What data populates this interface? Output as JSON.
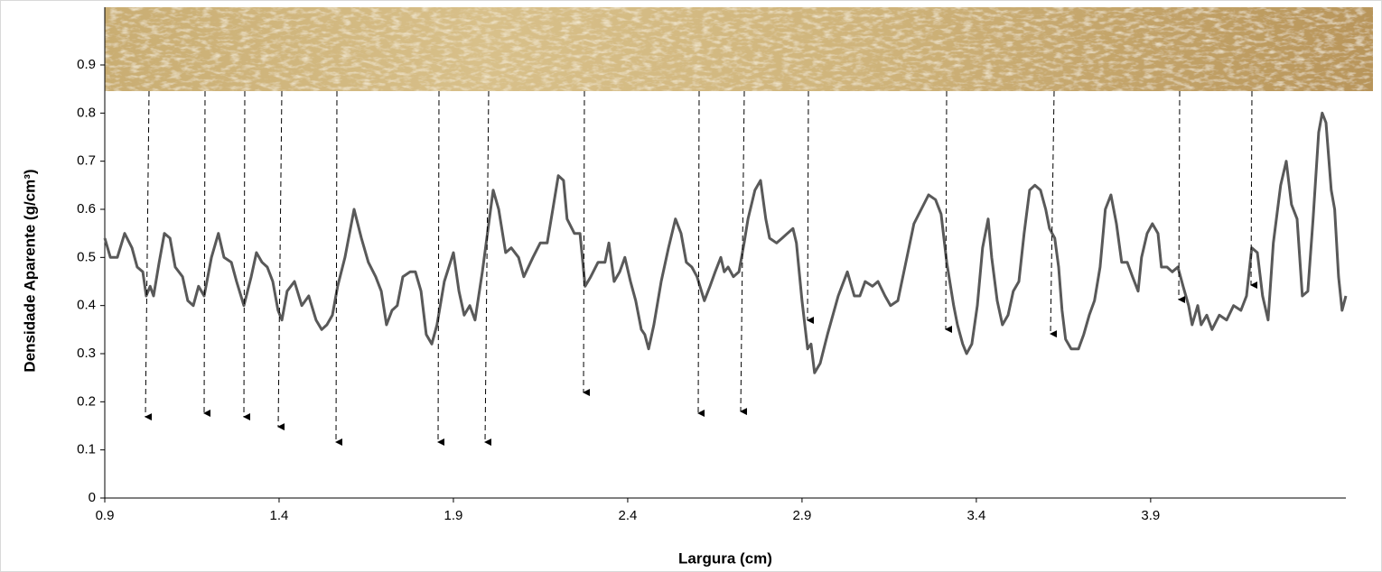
{
  "chart_data": {
    "type": "line",
    "x_label": "Largura (cm)",
    "y_label": "Densidade Aparente (g/cm³)",
    "color": "#595959",
    "xlim": [
      0.9,
      4.46
    ],
    "ylim": [
      0,
      1.02
    ],
    "xticks": [
      0.9,
      1.4,
      1.9,
      2.4,
      2.9,
      3.4,
      3.9
    ],
    "yticks": [
      0,
      0.1,
      0.2,
      0.3,
      0.4,
      0.5,
      0.6,
      0.7,
      0.8,
      0.9
    ],
    "x": [
      0.9,
      0.916,
      0.936,
      0.957,
      0.978,
      0.993,
      1.009,
      1.019,
      1.03,
      1.04,
      1.056,
      1.071,
      1.087,
      1.102,
      1.123,
      1.138,
      1.154,
      1.169,
      1.185,
      1.206,
      1.226,
      1.242,
      1.263,
      1.278,
      1.299,
      1.32,
      1.335,
      1.351,
      1.366,
      1.382,
      1.397,
      1.408,
      1.423,
      1.444,
      1.465,
      1.485,
      1.506,
      1.522,
      1.537,
      1.553,
      1.568,
      1.589,
      1.615,
      1.636,
      1.656,
      1.677,
      1.693,
      1.708,
      1.724,
      1.739,
      1.755,
      1.776,
      1.791,
      1.807,
      1.822,
      1.838,
      1.853,
      1.874,
      1.9,
      1.916,
      1.931,
      1.947,
      1.962,
      1.983,
      2.014,
      2.03,
      2.05,
      2.066,
      2.087,
      2.102,
      2.128,
      2.149,
      2.169,
      2.185,
      2.201,
      2.216,
      2.226,
      2.247,
      2.263,
      2.278,
      2.294,
      2.315,
      2.335,
      2.346,
      2.361,
      2.377,
      2.392,
      2.408,
      2.423,
      2.439,
      2.449,
      2.46,
      2.475,
      2.496,
      2.517,
      2.537,
      2.553,
      2.568,
      2.584,
      2.599,
      2.62,
      2.636,
      2.651,
      2.667,
      2.677,
      2.688,
      2.703,
      2.719,
      2.734,
      2.745,
      2.765,
      2.781,
      2.796,
      2.807,
      2.827,
      2.843,
      2.858,
      2.874,
      2.884,
      2.9,
      2.916,
      2.926,
      2.936,
      2.952,
      2.973,
      3.004,
      3.03,
      3.05,
      3.066,
      3.081,
      3.102,
      3.118,
      3.138,
      3.154,
      3.175,
      3.195,
      3.221,
      3.242,
      3.263,
      3.283,
      3.299,
      3.315,
      3.335,
      3.346,
      3.361,
      3.372,
      3.387,
      3.403,
      3.418,
      3.434,
      3.444,
      3.46,
      3.475,
      3.491,
      3.506,
      3.522,
      3.537,
      3.553,
      3.568,
      3.584,
      3.599,
      3.61,
      3.625,
      3.636,
      3.646,
      3.656,
      3.672,
      3.693,
      3.708,
      3.724,
      3.739,
      3.755,
      3.77,
      3.786,
      3.802,
      3.817,
      3.833,
      3.848,
      3.864,
      3.874,
      3.89,
      3.905,
      3.921,
      3.931,
      3.947,
      3.962,
      3.978,
      3.993,
      4.009,
      4.019,
      4.035,
      4.045,
      4.061,
      4.076,
      4.097,
      4.118,
      4.138,
      4.159,
      4.175,
      4.19,
      4.206,
      4.221,
      4.237,
      4.252,
      4.273,
      4.289,
      4.304,
      4.32,
      4.335,
      4.351,
      4.366,
      4.382,
      4.392,
      4.403,
      4.418,
      4.428,
      4.439,
      4.449,
      4.46
    ],
    "values": [
      0.54,
      0.5,
      0.5,
      0.55,
      0.52,
      0.48,
      0.47,
      0.42,
      0.44,
      0.42,
      0.49,
      0.55,
      0.54,
      0.48,
      0.46,
      0.41,
      0.4,
      0.44,
      0.42,
      0.5,
      0.55,
      0.5,
      0.49,
      0.45,
      0.4,
      0.46,
      0.51,
      0.49,
      0.48,
      0.45,
      0.39,
      0.37,
      0.43,
      0.45,
      0.4,
      0.42,
      0.37,
      0.35,
      0.36,
      0.38,
      0.44,
      0.5,
      0.6,
      0.54,
      0.49,
      0.46,
      0.43,
      0.36,
      0.39,
      0.4,
      0.46,
      0.47,
      0.47,
      0.43,
      0.34,
      0.32,
      0.36,
      0.45,
      0.51,
      0.43,
      0.38,
      0.4,
      0.37,
      0.47,
      0.64,
      0.6,
      0.51,
      0.52,
      0.5,
      0.46,
      0.5,
      0.53,
      0.53,
      0.6,
      0.67,
      0.66,
      0.58,
      0.55,
      0.55,
      0.44,
      0.46,
      0.49,
      0.49,
      0.53,
      0.45,
      0.47,
      0.5,
      0.45,
      0.41,
      0.35,
      0.34,
      0.31,
      0.36,
      0.45,
      0.52,
      0.58,
      0.55,
      0.49,
      0.48,
      0.46,
      0.41,
      0.44,
      0.47,
      0.5,
      0.47,
      0.48,
      0.46,
      0.47,
      0.53,
      0.58,
      0.64,
      0.66,
      0.58,
      0.54,
      0.53,
      0.54,
      0.55,
      0.56,
      0.53,
      0.41,
      0.31,
      0.32,
      0.26,
      0.28,
      0.34,
      0.42,
      0.47,
      0.42,
      0.42,
      0.45,
      0.44,
      0.45,
      0.42,
      0.4,
      0.41,
      0.48,
      0.57,
      0.6,
      0.63,
      0.62,
      0.59,
      0.49,
      0.4,
      0.36,
      0.32,
      0.3,
      0.32,
      0.4,
      0.52,
      0.58,
      0.5,
      0.41,
      0.36,
      0.38,
      0.43,
      0.45,
      0.55,
      0.64,
      0.65,
      0.64,
      0.6,
      0.56,
      0.54,
      0.48,
      0.39,
      0.33,
      0.31,
      0.31,
      0.34,
      0.38,
      0.41,
      0.48,
      0.6,
      0.63,
      0.57,
      0.49,
      0.49,
      0.46,
      0.43,
      0.5,
      0.55,
      0.57,
      0.55,
      0.48,
      0.48,
      0.47,
      0.48,
      0.44,
      0.4,
      0.36,
      0.4,
      0.36,
      0.38,
      0.35,
      0.38,
      0.37,
      0.4,
      0.39,
      0.42,
      0.52,
      0.51,
      0.42,
      0.37,
      0.53,
      0.65,
      0.7,
      0.61,
      0.58,
      0.42,
      0.43,
      0.58,
      0.76,
      0.8,
      0.78,
      0.64,
      0.6,
      0.46,
      0.39,
      0.42
    ]
  }
}
